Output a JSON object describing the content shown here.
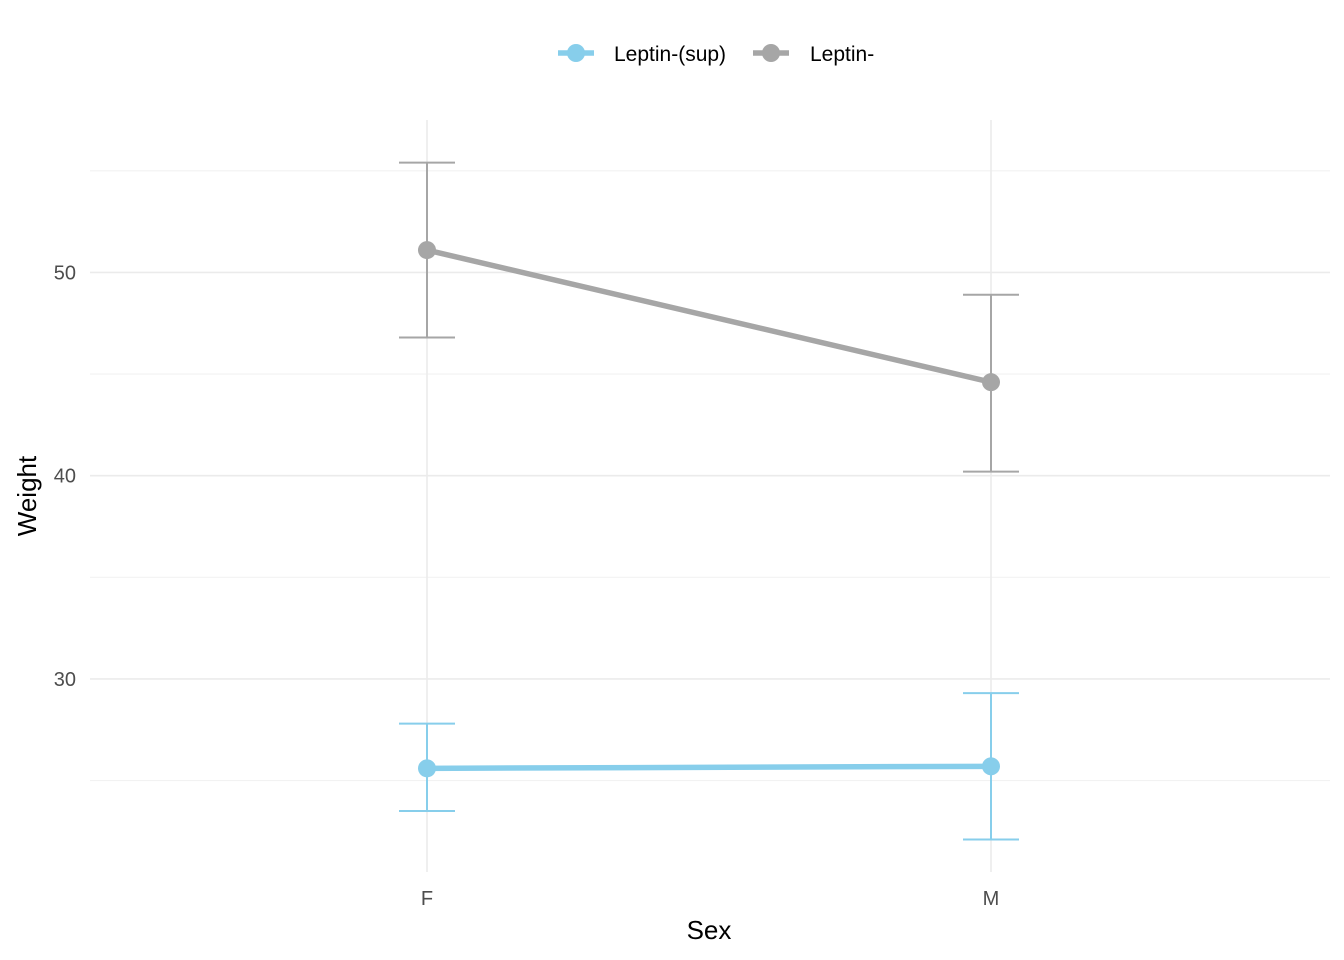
{
  "chart_data": {
    "type": "line",
    "xlabel": "Sex",
    "ylabel": "Weight",
    "categories": [
      "F",
      "M"
    ],
    "ylim": [
      20.5,
      57.5
    ],
    "y_ticks": [
      30,
      40,
      50
    ],
    "y_minor": [
      25,
      35,
      45,
      55
    ],
    "grid": true,
    "legend_position": "top",
    "series": [
      {
        "name": "Leptin-(sup)",
        "color": "#87CEEB",
        "values": [
          25.6,
          25.7
        ],
        "error_lower": [
          23.5,
          22.1
        ],
        "error_upper": [
          27.8,
          29.3
        ]
      },
      {
        "name": "Leptin-",
        "color": "#A6A6A6",
        "values": [
          51.1,
          44.6
        ],
        "error_lower": [
          46.8,
          40.2
        ],
        "error_upper": [
          55.4,
          48.9
        ]
      }
    ]
  }
}
